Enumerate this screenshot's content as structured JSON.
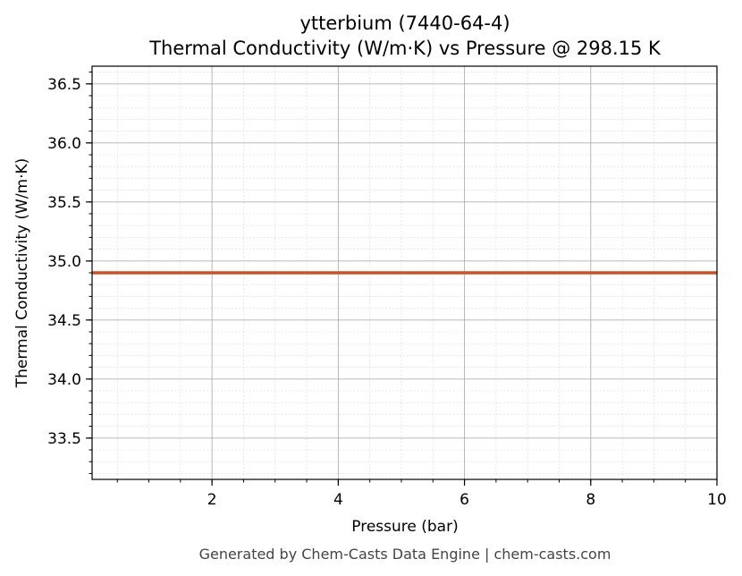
{
  "chart_data": {
    "type": "line",
    "title": "ytterbium (7440-64-4)",
    "subtitle": "Thermal Conductivity (W/m·K) vs Pressure @ 298.15 K",
    "xlabel": "Pressure (bar)",
    "ylabel": "Thermal Conductivity (W/m·K)",
    "xlim": [
      0.1,
      10
    ],
    "ylim": [
      33.15,
      36.65
    ],
    "x_ticks": [
      2,
      4,
      6,
      8,
      10
    ],
    "x_tick_labels": [
      "2",
      "4",
      "6",
      "8",
      "10"
    ],
    "y_ticks": [
      33.5,
      34.0,
      34.5,
      35.0,
      35.5,
      36.0,
      36.5
    ],
    "y_tick_labels": [
      "33.5",
      "34.0",
      "34.5",
      "35.0",
      "35.5",
      "36.0",
      "36.5"
    ],
    "grid": true,
    "minor_grid": true,
    "series": [
      {
        "x": [
          0.1,
          10
        ],
        "y": [
          34.9,
          34.9
        ],
        "color": "#c8522a"
      }
    ]
  },
  "footer": "Generated by Chem-Casts Data Engine | chem-casts.com"
}
